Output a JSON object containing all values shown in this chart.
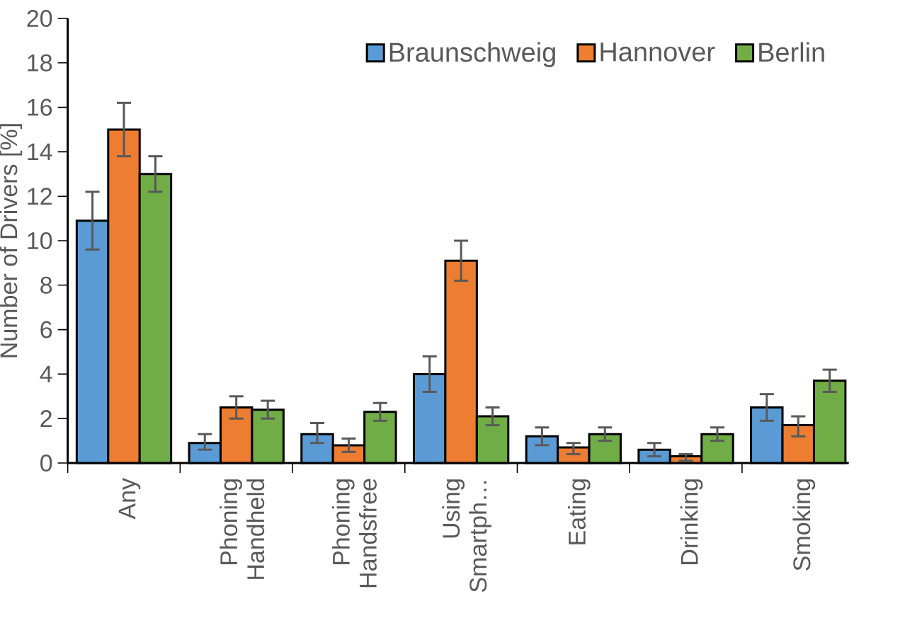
{
  "chart_data": {
    "type": "bar",
    "ylabel": "Number of Drivers [%]",
    "categories": [
      "Any",
      "Phoning Handheld",
      "Phoning Handsfree",
      "Using Smartph…",
      "Eating",
      "Drinking",
      "Smoking"
    ],
    "series": [
      {
        "name": "Braunschweig",
        "color": "#5b9bd5",
        "values": [
          10.9,
          0.9,
          1.3,
          4.0,
          1.2,
          0.6,
          2.5
        ],
        "errors": [
          [
            9.6,
            12.2
          ],
          [
            0.6,
            1.3
          ],
          [
            0.9,
            1.8
          ],
          [
            3.2,
            4.8
          ],
          [
            0.8,
            1.6
          ],
          [
            0.3,
            0.9
          ],
          [
            1.9,
            3.1
          ]
        ]
      },
      {
        "name": "Hannover",
        "color": "#ed7d31",
        "values": [
          15.0,
          2.5,
          0.8,
          9.1,
          0.7,
          0.3,
          1.7
        ],
        "errors": [
          [
            13.8,
            16.2
          ],
          [
            2.0,
            3.0
          ],
          [
            0.5,
            1.1
          ],
          [
            8.2,
            10.0
          ],
          [
            0.4,
            0.9
          ],
          [
            0.1,
            0.4
          ],
          [
            1.2,
            2.1
          ]
        ]
      },
      {
        "name": "Berlin",
        "color": "#70ad47",
        "values": [
          13.0,
          2.4,
          2.3,
          2.1,
          1.3,
          1.3,
          3.7
        ],
        "errors": [
          [
            12.2,
            13.8
          ],
          [
            2.0,
            2.8
          ],
          [
            1.9,
            2.7
          ],
          [
            1.7,
            2.5
          ],
          [
            1.0,
            1.6
          ],
          [
            1.0,
            1.6
          ],
          [
            3.2,
            4.2
          ]
        ]
      }
    ],
    "ylim": [
      0,
      20
    ],
    "yticks": [
      0,
      2,
      4,
      6,
      8,
      10,
      12,
      14,
      16,
      18,
      20
    ],
    "legend": "top right",
    "grid": false
  }
}
